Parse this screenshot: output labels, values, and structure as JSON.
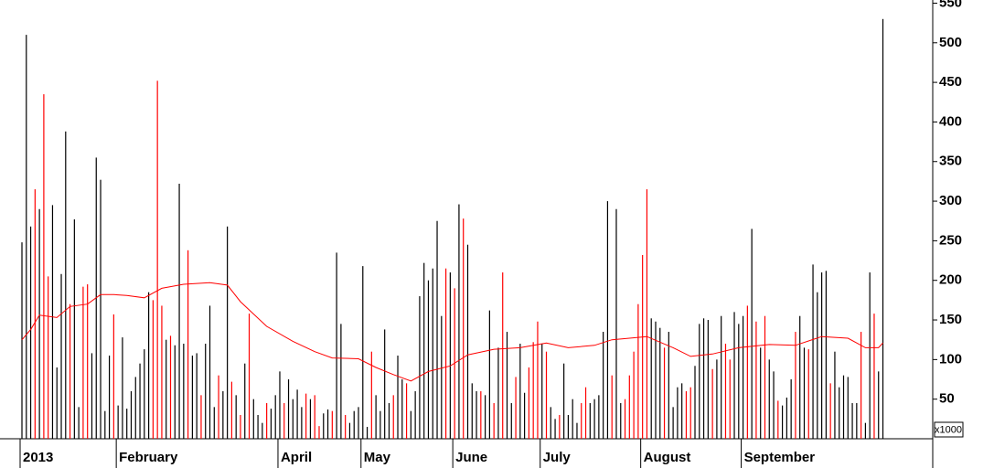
{
  "chart_data": {
    "type": "bar",
    "unit_label": "x1000",
    "ylim": [
      0,
      554
    ],
    "yticks": [
      50,
      100,
      150,
      200,
      250,
      300,
      350,
      400,
      450,
      500,
      550
    ],
    "xlim": [
      0,
      208.4
    ],
    "xticks": [
      {
        "value": 0,
        "label": "2013"
      },
      {
        "value": 22,
        "label": "February"
      },
      {
        "value": 59,
        "label": "April"
      },
      {
        "value": 78,
        "label": "May"
      },
      {
        "value": 99,
        "label": "June"
      },
      {
        "value": 119,
        "label": "July"
      },
      {
        "value": 142,
        "label": "August"
      },
      {
        "value": 165,
        "label": "September"
      }
    ],
    "values": [
      248,
      510,
      268,
      315,
      290,
      435,
      205,
      295,
      90,
      208,
      388,
      170,
      277,
      40,
      192,
      195,
      108,
      355,
      327,
      35,
      105,
      157,
      42,
      128,
      38,
      60,
      78,
      95,
      113,
      185,
      175,
      452,
      168,
      125,
      130,
      118,
      322,
      120,
      238,
      105,
      108,
      55,
      120,
      168,
      40,
      80,
      60,
      268,
      72,
      55,
      30,
      95,
      158,
      50,
      30,
      20,
      45,
      38,
      55,
      85,
      45,
      75,
      50,
      62,
      40,
      57,
      50,
      55,
      16,
      32,
      37,
      35,
      235,
      145,
      30,
      20,
      35,
      40,
      218,
      15,
      110,
      55,
      35,
      138,
      45,
      55,
      105,
      75,
      70,
      35,
      60,
      180,
      222,
      200,
      215,
      275,
      155,
      215,
      210,
      190,
      296,
      278,
      245,
      70,
      60,
      60,
      55,
      162,
      45,
      115,
      210,
      135,
      45,
      78,
      120,
      58,
      90,
      122,
      148,
      120,
      110,
      40,
      25,
      30,
      95,
      30,
      50,
      20,
      45,
      65,
      45,
      50,
      55,
      135,
      300,
      80,
      290,
      45,
      50,
      80,
      110,
      170,
      232,
      315,
      152,
      148,
      140,
      115,
      135,
      40,
      65,
      70,
      60,
      65,
      92,
      145,
      152,
      150,
      88,
      100,
      155,
      120,
      100,
      160,
      145,
      155,
      168,
      265,
      148,
      115,
      155,
      100,
      85,
      48,
      42,
      52,
      75,
      135,
      155,
      115,
      113,
      220,
      185,
      210,
      212,
      70,
      110,
      65,
      80,
      78,
      45,
      45,
      135,
      20,
      210,
      158,
      85,
      530
    ],
    "colors": [
      "#000",
      "#000",
      "#000",
      "#f00",
      "#000",
      "#f00",
      "#f00",
      "#000",
      "#000",
      "#000",
      "#000",
      "#f00",
      "#000",
      "#000",
      "#f00",
      "#f00",
      "#000",
      "#000",
      "#000",
      "#000",
      "#000",
      "#f00",
      "#000",
      "#000",
      "#000",
      "#000",
      "#000",
      "#000",
      "#000",
      "#000",
      "#f00",
      "#f00",
      "#f00",
      "#000",
      "#f00",
      "#000",
      "#000",
      "#000",
      "#f00",
      "#000",
      "#000",
      "#f00",
      "#000",
      "#000",
      "#000",
      "#f00",
      "#000",
      "#000",
      "#f00",
      "#000",
      "#f00",
      "#000",
      "#f00",
      "#000",
      "#000",
      "#000",
      "#f00",
      "#000",
      "#000",
      "#000",
      "#f00",
      "#000",
      "#000",
      "#000",
      "#000",
      "#f00",
      "#000",
      "#f00",
      "#f00",
      "#000",
      "#000",
      "#f00",
      "#000",
      "#000",
      "#f00",
      "#000",
      "#000",
      "#000",
      "#000",
      "#000",
      "#f00",
      "#000",
      "#000",
      "#000",
      "#000",
      "#f00",
      "#000",
      "#000",
      "#f00",
      "#000",
      "#000",
      "#000",
      "#000",
      "#000",
      "#000",
      "#000",
      "#000",
      "#f00",
      "#000",
      "#f00",
      "#000",
      "#f00",
      "#000",
      "#000",
      "#000",
      "#f00",
      "#000",
      "#000",
      "#f00",
      "#000",
      "#f00",
      "#000",
      "#000",
      "#f00",
      "#000",
      "#000",
      "#f00",
      "#f00",
      "#f00",
      "#000",
      "#f00",
      "#000",
      "#000",
      "#f00",
      "#000",
      "#000",
      "#000",
      "#000",
      "#f00",
      "#f00",
      "#000",
      "#000",
      "#000",
      "#000",
      "#000",
      "#f00",
      "#000",
      "#000",
      "#f00",
      "#f00",
      "#f00",
      "#f00",
      "#f00",
      "#f00",
      "#000",
      "#000",
      "#000",
      "#f00",
      "#000",
      "#000",
      "#000",
      "#000",
      "#f00",
      "#f00",
      "#000",
      "#000",
      "#000",
      "#000",
      "#f00",
      "#000",
      "#000",
      "#f00",
      "#f00",
      "#000",
      "#000",
      "#000",
      "#f00",
      "#000",
      "#f00",
      "#000",
      "#f00",
      "#000",
      "#000",
      "#f00",
      "#000",
      "#000",
      "#000",
      "#f00",
      "#000",
      "#000",
      "#f00",
      "#000",
      "#000",
      "#000",
      "#000",
      "#f00",
      "#000",
      "#000",
      "#000",
      "#000",
      "#000",
      "#000",
      "#f00",
      "#000",
      "#000",
      "#f00",
      "#000",
      "#000"
    ],
    "average": {
      "color": "#f00",
      "x": [
        0,
        2,
        4,
        8,
        11,
        15,
        18,
        21,
        24,
        28,
        32,
        37,
        43,
        47,
        50,
        56,
        62,
        67,
        71,
        77,
        81,
        85,
        89,
        93,
        98,
        102,
        108,
        114,
        120,
        125,
        131,
        135,
        143,
        149,
        153,
        158,
        164,
        171,
        177,
        183,
        189,
        193,
        196,
        197
      ],
      "values": [
        125,
        138,
        156,
        153,
        167,
        170,
        182,
        182,
        181,
        178,
        190,
        195,
        197,
        194,
        173,
        142,
        123,
        110,
        102,
        101,
        90,
        81,
        73,
        85,
        92,
        106,
        113,
        115,
        121,
        115,
        118,
        125,
        129,
        115,
        104,
        107,
        115,
        119,
        118,
        129,
        127,
        115,
        115,
        121
      ]
    }
  }
}
